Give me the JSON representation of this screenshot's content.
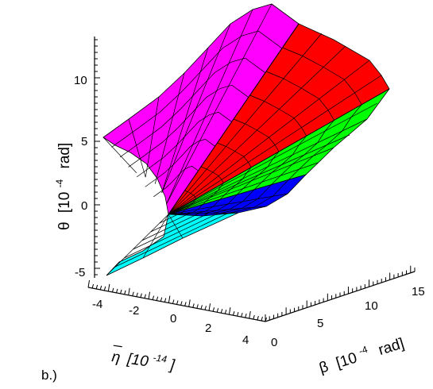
{
  "chart_data": {
    "type": "surface3d",
    "panel_label": "b.)",
    "axes": {
      "z": {
        "label_symbol": "θ",
        "label_unit_prefix": "[10",
        "label_exponent": "-4",
        "label_unit_suffix": "rad]",
        "ticks": [
          "-5",
          "0",
          "5",
          "10"
        ],
        "range": [
          -6,
          13
        ]
      },
      "x": {
        "label_symbol": "η",
        "label_unit_prefix": "[10",
        "label_exponent": "-14",
        "label_unit_suffix": "]",
        "ticks": [
          "-4",
          "-2",
          "0",
          "2",
          "4"
        ],
        "range": [
          -4,
          4
        ]
      },
      "y": {
        "label_symbol": "β",
        "label_unit_prefix": "[10",
        "label_exponent": "-4",
        "label_unit_suffix": "rad]",
        "ticks": [
          "0",
          "5",
          "10",
          "15"
        ],
        "range": [
          0,
          16
        ]
      }
    },
    "surface_regions": [
      {
        "region": "magenta",
        "color": "#ff00ff"
      },
      {
        "region": "red",
        "color": "#ff0000"
      },
      {
        "region": "green",
        "color": "#00ff00"
      },
      {
        "region": "blue",
        "color": "#0000ff"
      },
      {
        "region": "cyan",
        "color": "#00ffff"
      }
    ],
    "grid": true
  }
}
